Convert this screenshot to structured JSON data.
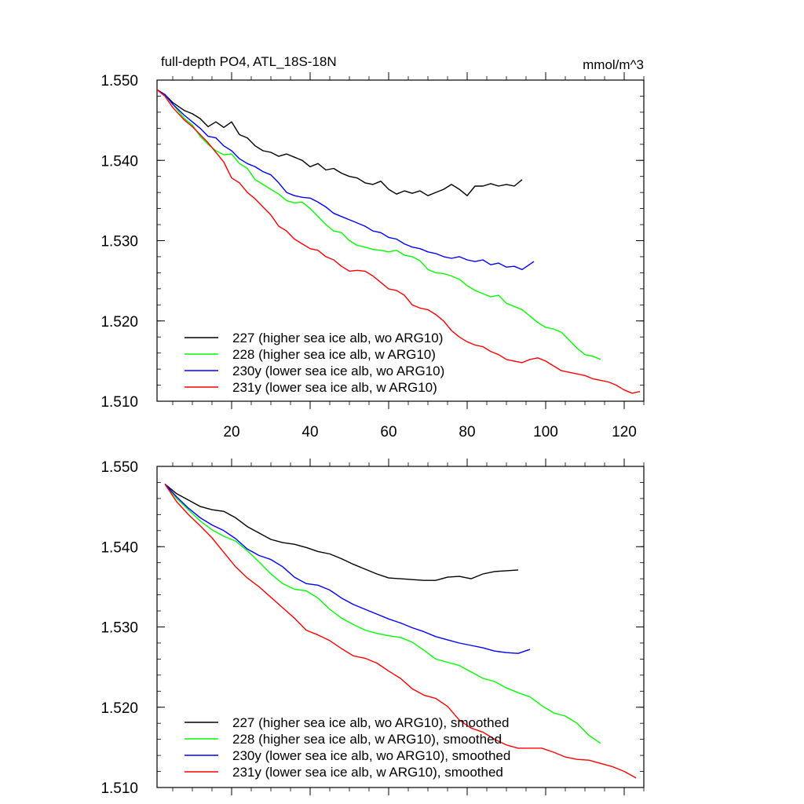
{
  "chart_data": [
    {
      "type": "line",
      "title": "full-depth PO4, ATL_18S-18N",
      "units": "mmol/m^3",
      "xlim": [
        1,
        125
      ],
      "ylim": [
        1.51,
        1.55
      ],
      "yticks": [
        "1.550",
        "1.540",
        "1.530",
        "1.520",
        "1.510"
      ],
      "yticks_values": [
        1.55,
        1.54,
        1.53,
        1.52,
        1.51
      ],
      "xticks": [
        "20",
        "40",
        "60",
        "80",
        "100",
        "120"
      ],
      "xticks_values": [
        20,
        40,
        60,
        80,
        100,
        120
      ],
      "legend_position": "bottom-left",
      "series": [
        {
          "name": "227 (higher sea ice alb, wo ARG10)",
          "color": "#000000",
          "x": [
            1,
            3,
            5,
            8,
            10,
            12,
            14,
            16,
            18,
            20,
            22,
            24,
            26,
            28,
            30,
            32,
            34,
            36,
            38,
            40,
            42,
            44,
            46,
            48,
            50,
            52,
            54,
            56,
            58,
            60,
            62,
            64,
            66,
            68,
            70,
            72,
            74,
            76,
            78,
            80,
            82,
            84,
            86,
            88,
            90,
            92,
            94
          ],
          "y": [
            1.5488,
            1.5482,
            1.5472,
            1.5462,
            1.5458,
            1.5452,
            1.5442,
            1.5448,
            1.5441,
            1.5448,
            1.5432,
            1.5428,
            1.5418,
            1.5412,
            1.541,
            1.5405,
            1.5408,
            1.5404,
            1.54,
            1.5392,
            1.5396,
            1.5388,
            1.539,
            1.5384,
            1.538,
            1.5378,
            1.5372,
            1.537,
            1.5374,
            1.5364,
            1.5358,
            1.5362,
            1.5359,
            1.5362,
            1.5356,
            1.536,
            1.5364,
            1.537,
            1.5364,
            1.5356,
            1.5368,
            1.5368,
            1.5371,
            1.5368,
            1.537,
            1.5368,
            1.5376
          ]
        },
        {
          "name": "228 (higher sea ice alb, w ARG10)",
          "color": "#00ff00",
          "x": [
            1,
            3,
            5,
            8,
            10,
            12,
            14,
            16,
            18,
            20,
            22,
            24,
            26,
            28,
            30,
            32,
            34,
            36,
            38,
            40,
            42,
            44,
            46,
            48,
            50,
            52,
            54,
            56,
            58,
            60,
            62,
            64,
            66,
            68,
            70,
            72,
            74,
            76,
            78,
            80,
            82,
            84,
            86,
            88,
            90,
            92,
            94,
            96,
            98,
            100,
            102,
            104,
            106,
            108,
            110,
            112,
            114
          ],
          "y": [
            1.5488,
            1.5482,
            1.547,
            1.5452,
            1.5444,
            1.543,
            1.542,
            1.5412,
            1.5407,
            1.5408,
            1.5396,
            1.539,
            1.5376,
            1.537,
            1.5364,
            1.5358,
            1.535,
            1.5347,
            1.5348,
            1.534,
            1.533,
            1.532,
            1.5312,
            1.531,
            1.53,
            1.5294,
            1.5292,
            1.5289,
            1.5288,
            1.5286,
            1.5288,
            1.5282,
            1.528,
            1.5275,
            1.5264,
            1.526,
            1.5259,
            1.5256,
            1.5252,
            1.5244,
            1.5238,
            1.5234,
            1.523,
            1.5232,
            1.5222,
            1.5218,
            1.5214,
            1.5206,
            1.5198,
            1.5192,
            1.519,
            1.5186,
            1.5176,
            1.5166,
            1.5158,
            1.5156,
            1.5152
          ]
        },
        {
          "name": "230y (lower sea ice alb, wo ARG10)",
          "color": "#0000ff",
          "x": [
            1,
            3,
            5,
            8,
            10,
            12,
            14,
            16,
            18,
            20,
            22,
            24,
            26,
            28,
            30,
            32,
            34,
            36,
            38,
            40,
            42,
            44,
            46,
            48,
            50,
            52,
            54,
            56,
            58,
            60,
            62,
            64,
            66,
            68,
            70,
            72,
            74,
            76,
            78,
            80,
            82,
            84,
            86,
            88,
            90,
            92,
            94,
            97
          ],
          "y": [
            1.5488,
            1.5482,
            1.547,
            1.5456,
            1.5448,
            1.544,
            1.543,
            1.5428,
            1.5418,
            1.5412,
            1.5402,
            1.5396,
            1.5392,
            1.5386,
            1.5382,
            1.5372,
            1.536,
            1.5356,
            1.5354,
            1.5353,
            1.5348,
            1.5342,
            1.5334,
            1.533,
            1.5326,
            1.5322,
            1.5318,
            1.5312,
            1.531,
            1.5304,
            1.5302,
            1.5296,
            1.5292,
            1.529,
            1.5286,
            1.5284,
            1.528,
            1.5278,
            1.528,
            1.5276,
            1.5274,
            1.5276,
            1.527,
            1.5272,
            1.5267,
            1.5268,
            1.5264,
            1.5274
          ]
        },
        {
          "name": "231y (lower sea ice alb, w ARG10)",
          "color": "#ff0000",
          "x": [
            1,
            3,
            5,
            8,
            10,
            12,
            14,
            16,
            18,
            20,
            22,
            24,
            26,
            28,
            30,
            32,
            34,
            36,
            38,
            40,
            42,
            44,
            46,
            48,
            50,
            52,
            54,
            56,
            58,
            60,
            62,
            64,
            66,
            68,
            70,
            72,
            74,
            76,
            78,
            80,
            82,
            84,
            86,
            88,
            90,
            92,
            94,
            96,
            98,
            100,
            102,
            104,
            106,
            108,
            110,
            112,
            114,
            116,
            118,
            120,
            122,
            124
          ],
          "y": [
            1.5488,
            1.548,
            1.5466,
            1.545,
            1.5442,
            1.5432,
            1.5422,
            1.541,
            1.5398,
            1.5378,
            1.5372,
            1.536,
            1.5352,
            1.5342,
            1.5332,
            1.5318,
            1.5312,
            1.5302,
            1.5296,
            1.529,
            1.5288,
            1.528,
            1.5276,
            1.5268,
            1.5262,
            1.5263,
            1.5262,
            1.5256,
            1.5248,
            1.524,
            1.5238,
            1.5232,
            1.522,
            1.5216,
            1.5214,
            1.5208,
            1.52,
            1.5188,
            1.518,
            1.5174,
            1.517,
            1.5168,
            1.5162,
            1.5158,
            1.5152,
            1.515,
            1.5148,
            1.5152,
            1.5154,
            1.515,
            1.5144,
            1.5138,
            1.5136,
            1.5134,
            1.5132,
            1.5128,
            1.5126,
            1.5124,
            1.512,
            1.5114,
            1.511,
            1.5112
          ]
        }
      ]
    },
    {
      "type": "line",
      "title": "",
      "units": "",
      "xlim": [
        1,
        125
      ],
      "ylim": [
        1.51,
        1.55
      ],
      "yticks": [
        "1.550",
        "1.540",
        "1.530",
        "1.520",
        "1.510"
      ],
      "yticks_values": [
        1.55,
        1.54,
        1.53,
        1.52,
        1.51
      ],
      "xticks": [],
      "xticks_values": [
        20,
        40,
        60,
        80,
        100,
        120
      ],
      "legend_position": "bottom-left",
      "series": [
        {
          "name": "227 (higher sea ice alb, wo ARG10), smoothed",
          "color": "#000000",
          "x": [
            3,
            6,
            9,
            12,
            15,
            18,
            21,
            24,
            27,
            30,
            33,
            36,
            39,
            42,
            45,
            48,
            51,
            54,
            57,
            60,
            63,
            66,
            69,
            72,
            75,
            78,
            81,
            84,
            87,
            90,
            93
          ],
          "y": [
            1.5478,
            1.5466,
            1.5458,
            1.545,
            1.5446,
            1.5444,
            1.5436,
            1.5425,
            1.5417,
            1.5409,
            1.5405,
            1.5403,
            1.5399,
            1.5394,
            1.5391,
            1.5385,
            1.5378,
            1.5372,
            1.5366,
            1.5361,
            1.536,
            1.5359,
            1.5358,
            1.5358,
            1.5362,
            1.5363,
            1.536,
            1.5366,
            1.5369,
            1.537,
            1.5371
          ]
        },
        {
          "name": "228 (higher sea ice alb, w ARG10), smoothed",
          "color": "#00ff00",
          "x": [
            3,
            6,
            9,
            12,
            15,
            18,
            21,
            24,
            27,
            30,
            33,
            36,
            39,
            42,
            45,
            48,
            51,
            54,
            57,
            60,
            63,
            66,
            69,
            72,
            75,
            78,
            81,
            84,
            87,
            90,
            93,
            96,
            99,
            102,
            105,
            108,
            111,
            114
          ],
          "y": [
            1.5478,
            1.546,
            1.5446,
            1.5432,
            1.5421,
            1.5413,
            1.5407,
            1.5395,
            1.5381,
            1.5366,
            1.5354,
            1.5347,
            1.5345,
            1.5336,
            1.5322,
            1.5311,
            1.5303,
            1.5296,
            1.5292,
            1.5289,
            1.5287,
            1.5281,
            1.5271,
            1.526,
            1.5256,
            1.5252,
            1.5244,
            1.5236,
            1.5232,
            1.5224,
            1.5218,
            1.5213,
            1.5202,
            1.5193,
            1.5189,
            1.518,
            1.5165,
            1.5155
          ]
        },
        {
          "name": "230y (lower sea ice alb, wo ARG10), smoothed",
          "color": "#0000ff",
          "x": [
            3,
            6,
            9,
            12,
            15,
            18,
            21,
            24,
            27,
            30,
            33,
            36,
            39,
            42,
            45,
            48,
            51,
            54,
            57,
            60,
            63,
            66,
            69,
            72,
            75,
            78,
            81,
            84,
            87,
            90,
            93,
            96
          ],
          "y": [
            1.5478,
            1.5462,
            1.5448,
            1.5436,
            1.5427,
            1.542,
            1.541,
            1.5397,
            1.5389,
            1.5384,
            1.5375,
            1.5362,
            1.5354,
            1.5352,
            1.5346,
            1.5336,
            1.5328,
            1.5322,
            1.5316,
            1.531,
            1.5305,
            1.5299,
            1.5294,
            1.5288,
            1.5284,
            1.528,
            1.5277,
            1.5274,
            1.527,
            1.5268,
            1.5267,
            1.5272
          ]
        },
        {
          "name": "231y (lower sea ice alb, w ARG10), smoothed",
          "color": "#ff0000",
          "x": [
            3,
            6,
            9,
            12,
            15,
            18,
            21,
            24,
            27,
            30,
            33,
            36,
            39,
            42,
            45,
            48,
            51,
            54,
            57,
            60,
            63,
            66,
            69,
            72,
            75,
            78,
            81,
            84,
            87,
            90,
            93,
            96,
            99,
            102,
            105,
            108,
            111,
            114,
            117,
            120,
            123
          ],
          "y": [
            1.5478,
            1.5456,
            1.544,
            1.5426,
            1.5411,
            1.5393,
            1.5375,
            1.5361,
            1.535,
            1.5337,
            1.5324,
            1.5311,
            1.5296,
            1.529,
            1.5283,
            1.5273,
            1.5264,
            1.5261,
            1.5255,
            1.5245,
            1.5236,
            1.5223,
            1.5215,
            1.5211,
            1.5201,
            1.5184,
            1.5174,
            1.5169,
            1.516,
            1.5153,
            1.5149,
            1.5149,
            1.5149,
            1.5144,
            1.5138,
            1.5135,
            1.5134,
            1.513,
            1.5126,
            1.512,
            1.5112
          ]
        }
      ]
    }
  ]
}
